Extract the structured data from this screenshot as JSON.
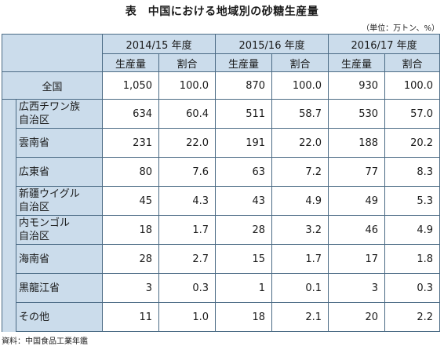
{
  "title": "表　中国における地域別の砂糖生産量",
  "unit_note": "（単位：万トン、%）",
  "years": [
    "2014/15 年度",
    "2015/16 年度",
    "2016/17 年度"
  ],
  "subheaders": [
    "生産量",
    "割合"
  ],
  "total": {
    "label": "全国",
    "values": [
      "1,050",
      "100.0",
      "870",
      "100.0",
      "930",
      "100.0"
    ]
  },
  "regions": [
    {
      "label_lines": [
        "広西チワン族",
        "自治区"
      ],
      "values": [
        "634",
        "60.4",
        "511",
        "58.7",
        "530",
        "57.0"
      ]
    },
    {
      "label_lines": [
        "雲南省"
      ],
      "values": [
        "231",
        "22.0",
        "191",
        "22.0",
        "188",
        "20.2"
      ]
    },
    {
      "label_lines": [
        "広東省"
      ],
      "values": [
        "80",
        "7.6",
        "63",
        "7.2",
        "77",
        "8.3"
      ]
    },
    {
      "label_lines": [
        "新疆ウイグル",
        "自治区"
      ],
      "values": [
        "45",
        "4.3",
        "43",
        "4.9",
        "49",
        "5.3"
      ]
    },
    {
      "label_lines": [
        "内モンゴル",
        "自治区"
      ],
      "values": [
        "18",
        "1.7",
        "28",
        "3.2",
        "46",
        "4.9"
      ]
    },
    {
      "label_lines": [
        "海南省"
      ],
      "values": [
        "28",
        "2.7",
        "15",
        "1.7",
        "17",
        "1.8"
      ]
    },
    {
      "label_lines": [
        "黒龍江省"
      ],
      "values": [
        "3",
        "0.3",
        "1",
        "0.1",
        "3",
        "0.3"
      ]
    },
    {
      "label_lines": [
        "その他"
      ],
      "values": [
        "11",
        "1.0",
        "18",
        "2.1",
        "20",
        "2.2"
      ]
    }
  ],
  "source": "資料：中国食品工業年鑑",
  "colors": {
    "header_bg": "#cbdceb",
    "border": "#4a6a84"
  }
}
